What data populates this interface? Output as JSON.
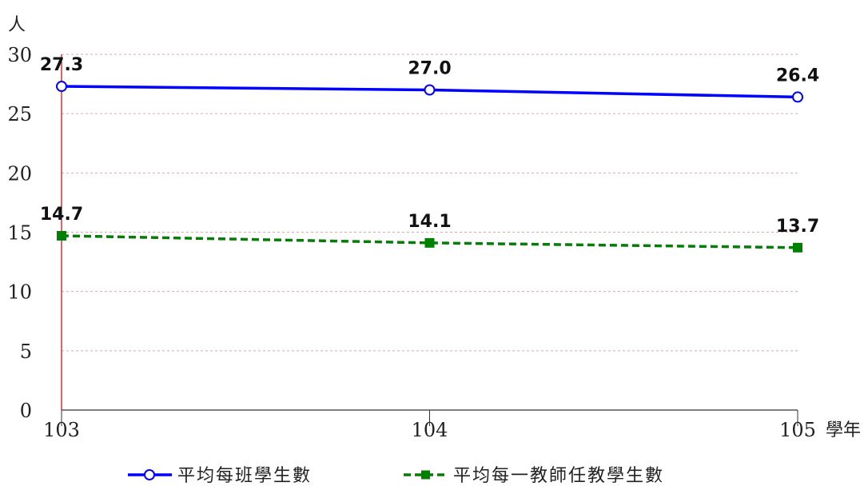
{
  "chart_data": {
    "type": "line",
    "title": "",
    "x_unit": "學年",
    "y_unit": "人",
    "categories": [
      "103",
      "104",
      "105"
    ],
    "ylim": [
      0,
      30
    ],
    "yticks": [
      "0",
      "5",
      "10",
      "15",
      "20",
      "25",
      "30"
    ],
    "grid": true,
    "legend_position": "bottom",
    "series": [
      {
        "name": "平均每班學生數",
        "values": [
          27.3,
          27.0,
          26.4
        ],
        "labels": [
          "27.3",
          "27.0",
          "26.4"
        ],
        "color": "#0000ff",
        "line_style": "solid",
        "marker": "circle"
      },
      {
        "name": "平均每一教師任教學生數",
        "values": [
          14.7,
          14.1,
          13.7
        ],
        "labels": [
          "14.7",
          "14.1",
          "13.7"
        ],
        "color": "#008000",
        "line_style": "dashed",
        "marker": "square"
      }
    ]
  }
}
